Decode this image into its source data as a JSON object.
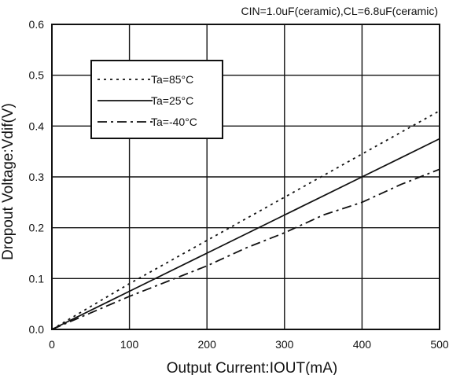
{
  "chart_data": {
    "type": "line",
    "title": "CIN=1.0uF(ceramic),CL=6.8uF(ceramic)",
    "xlabel": "Output Current:IOUT(mA)",
    "ylabel": "Dropout Voltage:Vdif(V)",
    "xlim": [
      0,
      500
    ],
    "ylim": [
      0.0,
      0.6
    ],
    "xticks": [
      "0",
      "100",
      "200",
      "300",
      "400",
      "500"
    ],
    "yticks": [
      "0.0",
      "0.1",
      "0.2",
      "0.3",
      "0.4",
      "0.5",
      "0.6"
    ],
    "grid": true,
    "legend_position": "upper-left",
    "series": [
      {
        "name": "Ta=85°C",
        "style": "dotted",
        "color": "#111111",
        "points": [
          [
            0,
            0.0
          ],
          [
            100,
            0.09
          ],
          [
            200,
            0.175
          ],
          [
            300,
            0.26
          ],
          [
            400,
            0.345
          ],
          [
            500,
            0.43
          ]
        ]
      },
      {
        "name": "Ta=25°C",
        "style": "solid",
        "color": "#111111",
        "points": [
          [
            0,
            0.0
          ],
          [
            100,
            0.075
          ],
          [
            200,
            0.15
          ],
          [
            300,
            0.225
          ],
          [
            400,
            0.3
          ],
          [
            500,
            0.375
          ]
        ]
      },
      {
        "name": "Ta=-40°C",
        "style": "dashdot",
        "color": "#111111",
        "points": [
          [
            0,
            0.0
          ],
          [
            100,
            0.065
          ],
          [
            200,
            0.125
          ],
          [
            250,
            0.16
          ],
          [
            300,
            0.19
          ],
          [
            350,
            0.225
          ],
          [
            400,
            0.25
          ],
          [
            450,
            0.285
          ],
          [
            500,
            0.315
          ]
        ]
      }
    ]
  }
}
